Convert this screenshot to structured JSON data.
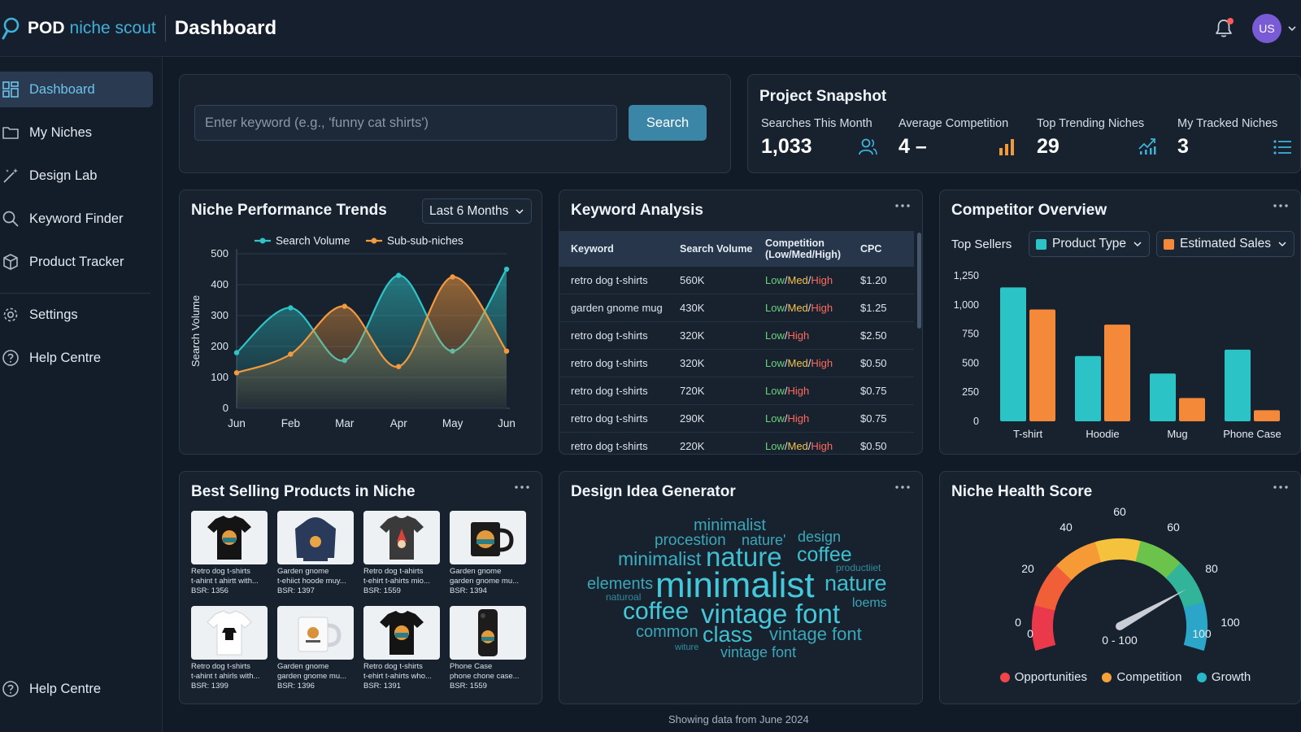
{
  "app": {
    "brand_bold": "POD",
    "brand_rest": "niche scout",
    "page_title": "Dashboard",
    "avatar_initials": "US"
  },
  "sidebar": {
    "items": [
      {
        "label": "Dashboard",
        "icon": "dashboard-grid-icon"
      },
      {
        "label": "My Niches",
        "icon": "folder-icon"
      },
      {
        "label": "Design Lab",
        "icon": "magic-wand-icon"
      },
      {
        "label": "Keyword Finder",
        "icon": "search-icon"
      },
      {
        "label": "Product Tracker",
        "icon": "box-icon"
      },
      {
        "label": "Settings",
        "icon": "gear-icon"
      },
      {
        "label": "Help Centre",
        "icon": "help-circle-icon"
      }
    ],
    "bottom_item": {
      "label": "Help Centre",
      "icon": "help-circle-icon"
    }
  },
  "search": {
    "placeholder": "Enter keyword (e.g., 'funny cat shirts')",
    "button_label": "Search"
  },
  "snapshot": {
    "title": "Project Snapshot",
    "stats": [
      {
        "label": "Searches This Month",
        "value": "1,033",
        "icon": "users-icon"
      },
      {
        "label": "Average Competition",
        "value": "4 –",
        "icon": "bar-chart-icon"
      },
      {
        "label": "Top Trending Niches",
        "value": "29",
        "icon": "trend-up-icon"
      },
      {
        "label": "My Tracked Niches",
        "value": "3",
        "icon": "list-icon"
      }
    ]
  },
  "trends": {
    "title": "Niche Performance Trends",
    "range_select": "Last 6 Months"
  },
  "chart_data": [
    {
      "type": "line",
      "title": "Niche Performance Trends",
      "ylabel": "Search Volume",
      "xlabel": "",
      "x": [
        "Jun",
        "Feb",
        "Mar",
        "Apr",
        "May",
        "Jun"
      ],
      "ylim": [
        0,
        500
      ],
      "yticks": [
        0,
        100,
        200,
        300,
        400,
        500
      ],
      "grid": true,
      "legend": "top",
      "series": [
        {
          "name": "Search Volume",
          "color": "#2fc4c6",
          "values": [
            180,
            325,
            155,
            430,
            185,
            450
          ]
        },
        {
          "name": "Sub-sub-niches",
          "color": "#f39a3d",
          "values": [
            115,
            175,
            330,
            135,
            425,
            185
          ]
        }
      ]
    },
    {
      "type": "bar",
      "title": "Competitor Overview",
      "xlabel": "",
      "ylabel": "",
      "categories": [
        "T-shirt",
        "Hoodie",
        "Mug",
        "Phone Case"
      ],
      "ylim": [
        0,
        1250
      ],
      "yticks": [
        "0",
        "250",
        "500",
        "750",
        "1,000",
        "1,250"
      ],
      "grid": false,
      "series": [
        {
          "name": "Product Type",
          "color": "#2bc3c6",
          "values": [
            1150,
            560,
            410,
            615
          ]
        },
        {
          "name": "Estimated Sales",
          "color": "#f5893a",
          "values": [
            960,
            830,
            200,
            95
          ]
        }
      ]
    }
  ],
  "keyword_analysis": {
    "title": "Keyword Analysis",
    "headers": [
      "Keyword",
      "Search Volume",
      "Competition (Low/Med/High)",
      "CPC"
    ],
    "rows": [
      {
        "keyword": "retro dog t-shirts",
        "volume": "560K",
        "comp": [
          "Low",
          "Med",
          "High"
        ],
        "cpc": "$1.20"
      },
      {
        "keyword": "garden gnome mug",
        "volume": "430K",
        "comp": [
          "Low",
          "Med",
          "High"
        ],
        "cpc": "$1.25"
      },
      {
        "keyword": "retro dog t-shirts",
        "volume": "320K",
        "comp": [
          "Low",
          "High"
        ],
        "cpc": "$2.50"
      },
      {
        "keyword": "retro dog t-shirts",
        "volume": "320K",
        "comp": [
          "Low",
          "Med",
          "High"
        ],
        "cpc": "$0.50"
      },
      {
        "keyword": "retro dog t-shirts",
        "volume": "720K",
        "comp": [
          "Low",
          "High"
        ],
        "cpc": "$0.75"
      },
      {
        "keyword": "retro dog t-shirts",
        "volume": "290K",
        "comp": [
          "Low",
          "High"
        ],
        "cpc": "$0.75"
      },
      {
        "keyword": "retro dog t-shirts",
        "volume": "220K",
        "comp": [
          "Low",
          "Med",
          "High"
        ],
        "cpc": "$0.50"
      }
    ]
  },
  "competitor": {
    "title": "Competitor Overview",
    "top_sellers_label": "Top Sellers",
    "select_1": "Product Type",
    "select_2": "Estimated Sales"
  },
  "best_selling": {
    "title": "Best Selling Products in Niche",
    "products": [
      {
        "name1": "Retro dog t-shirts",
        "name2": "t-ahint t ahirtt with...",
        "bsr": "BSR: 1356",
        "kind": "black-tshirt"
      },
      {
        "name1": "Garden gnome",
        "name2": "t-ehiict hoode muy...",
        "bsr": "BSR: 1397",
        "kind": "navy-hoodie"
      },
      {
        "name1": "Retro dog t-ahirts",
        "name2": "t-ehirt t-ahirts mio...",
        "bsr": "BSR: 1559",
        "kind": "black-tshirt-gnome"
      },
      {
        "name1": "Garden gnome",
        "name2": "garden gnome mu...",
        "bsr": "BSR: 1394",
        "kind": "black-mug"
      },
      {
        "name1": "Retro dog t-shirts",
        "name2": "t-ahint t ahirls with...",
        "bsr": "BSR: 1399",
        "kind": "white-tshirt"
      },
      {
        "name1": "Garden gnome",
        "name2": "garden gnome mu...",
        "bsr": "BSR: 1396",
        "kind": "white-mug"
      },
      {
        "name1": "Retro dog t-shirts",
        "name2": "t-ehirt t-ahirts who...",
        "bsr": "BSR: 1391",
        "kind": "black-tshirt"
      },
      {
        "name1": "Phone Case",
        "name2": "phone chone case...",
        "bsr": "BSR: 1559",
        "kind": "phone-case"
      }
    ]
  },
  "design_ideas": {
    "title": "Design Idea Generator",
    "words": [
      "minimalist",
      "procestion",
      "nature'",
      "design",
      "minimalist",
      "nature",
      "coffee",
      "productiiet",
      "elements",
      "minimalist",
      "nature",
      "naturoal",
      "loems",
      "coffee",
      "vintage",
      "font",
      "common",
      "class",
      "vintage font",
      "witure",
      "vintage font"
    ]
  },
  "health": {
    "title": "Niche Health Score",
    "gauge_labels": [
      "0",
      "20",
      "40",
      "60",
      "60",
      "80",
      "100",
      "0",
      "0 - 100",
      "100"
    ],
    "needle_value_percent": 79,
    "legend": [
      {
        "label": "Opportunities",
        "color": "#f0454a"
      },
      {
        "label": "Competition",
        "color": "#f6a13a"
      },
      {
        "label": "Growth",
        "color": "#29b8c8"
      }
    ]
  },
  "footer_note": "Showing data from June 2024"
}
